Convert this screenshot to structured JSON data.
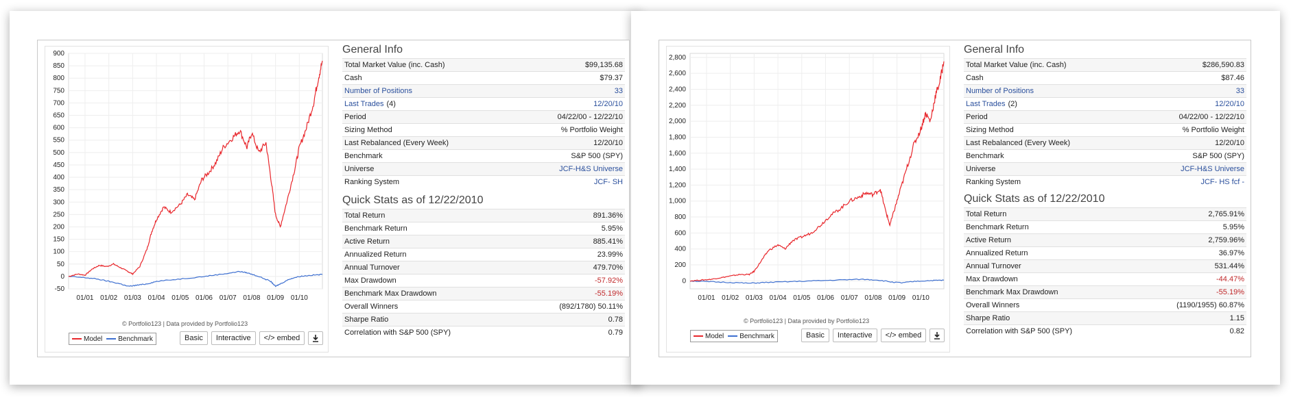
{
  "colors": {
    "model": "#e8262b",
    "benchmark": "#3d6fd0",
    "link": "#2a4f9c",
    "negative": "#c0282a"
  },
  "charts": [
    {
      "chart_data": {
        "type": "line",
        "ylim": [
          -50,
          900
        ],
        "yticks": [
          "900",
          "850",
          "800",
          "750",
          "700",
          "650",
          "600",
          "550",
          "500",
          "450",
          "400",
          "350",
          "300",
          "250",
          "200",
          "150",
          "100",
          "50",
          "0",
          "-50"
        ],
        "xticks": [
          "01/01",
          "01/02",
          "01/03",
          "01/04",
          "01/05",
          "01/06",
          "01/07",
          "01/08",
          "01/09",
          "01/10"
        ],
        "x_range": [
          2000.31,
          2010.97
        ],
        "series": [
          {
            "name": "Model",
            "x": [
              2000.31,
              2000.7,
              2001.0,
              2001.3,
              2001.6,
              2001.9,
              2002.2,
              2002.5,
              2002.8,
              2003.0,
              2003.3,
              2003.6,
              2003.8,
              2004.0,
              2004.3,
              2004.6,
              2005.0,
              2005.3,
              2005.6,
              2005.9,
              2006.2,
              2006.5,
              2006.8,
              2007.2,
              2007.5,
              2007.8,
              2008.0,
              2008.3,
              2008.6,
              2008.8,
              2009.0,
              2009.2,
              2009.5,
              2009.8,
              2010.0,
              2010.3,
              2010.6,
              2010.8,
              2010.97
            ],
            "y": [
              0,
              10,
              5,
              30,
              45,
              40,
              50,
              35,
              20,
              10,
              40,
              110,
              180,
              230,
              280,
              260,
              290,
              330,
              310,
              390,
              420,
              460,
              520,
              560,
              590,
              520,
              580,
              500,
              540,
              400,
              250,
              200,
              310,
              430,
              520,
              600,
              700,
              800,
              870
            ]
          },
          {
            "name": "Benchmark",
            "x": [
              2000.31,
              2001.0,
              2001.5,
              2002.0,
              2002.5,
              2002.8,
              2003.2,
              2003.6,
              2004.0,
              2005.0,
              2006.0,
              2006.8,
              2007.5,
              2007.8,
              2008.3,
              2008.8,
              2009.0,
              2009.2,
              2009.6,
              2010.0,
              2010.5,
              2010.97
            ],
            "y": [
              0,
              -5,
              -10,
              -20,
              -30,
              -40,
              -35,
              -30,
              -20,
              -10,
              0,
              10,
              20,
              15,
              0,
              -20,
              -40,
              -30,
              -10,
              0,
              5,
              8
            ]
          }
        ]
      },
      "credit": "© Portfolio123 | Data provided by Portfolio123",
      "legend": {
        "model": "Model",
        "benchmark": "Benchmark"
      },
      "buttons": {
        "basic": "Basic",
        "interactive": "Interactive",
        "embed": "</> embed"
      },
      "general_title": "General Info",
      "general": [
        {
          "label": "Total Market Value (inc. Cash)",
          "value": "$99,135.68"
        },
        {
          "label": "Cash",
          "value": "$79.37"
        },
        {
          "label": "Number of Positions",
          "value": "33",
          "link": true
        },
        {
          "label": "Last Trades",
          "extra": "(4)",
          "value": "12/20/10",
          "link": true
        },
        {
          "label": "Period",
          "value": "04/22/00 - 12/22/10"
        },
        {
          "label": "Sizing Method",
          "value": "% Portfolio Weight"
        },
        {
          "label": "Last Rebalanced (Every Week)",
          "value": "12/20/10"
        },
        {
          "label": "Benchmark",
          "value": "S&P 500 (SPY)"
        },
        {
          "label": "Universe",
          "value": "JCF-H&S Universe",
          "vlink": true
        },
        {
          "label": "Ranking System",
          "value": "JCF- SH",
          "vlink": true
        }
      ],
      "quick_title": "Quick Stats as of 12/22/2010",
      "quick": [
        {
          "label": "Total Return",
          "value": "891.36%"
        },
        {
          "label": "Benchmark Return",
          "value": "5.95%"
        },
        {
          "label": "Active Return",
          "value": "885.41%"
        },
        {
          "label": "Annualized Return",
          "value": "23.99%"
        },
        {
          "label": "Annual Turnover",
          "value": "479.70%"
        },
        {
          "label": "Max Drawdown",
          "value": "-57.92%",
          "neg": true
        },
        {
          "label": "Benchmark Max Drawdown",
          "value": "-55.19%",
          "neg": true
        },
        {
          "label": "Overall Winners",
          "value": "(892/1780) 50.11%"
        },
        {
          "label": "Sharpe Ratio",
          "value": "0.78"
        },
        {
          "label": "Correlation with S&P 500 (SPY)",
          "value": "0.79"
        }
      ]
    },
    {
      "chart_data": {
        "type": "line",
        "ylim": [
          -100,
          2850
        ],
        "yticks": [
          "2,800",
          "2,600",
          "2,400",
          "2,200",
          "2,000",
          "1,800",
          "1,600",
          "1,400",
          "1,200",
          "1,000",
          "800",
          "600",
          "400",
          "200",
          "0"
        ],
        "xticks": [
          "01/01",
          "01/02",
          "01/03",
          "01/04",
          "01/05",
          "01/06",
          "01/07",
          "01/08",
          "01/09",
          "01/10"
        ],
        "x_range": [
          2000.31,
          2010.97
        ],
        "series": [
          {
            "name": "Model",
            "x": [
              2000.31,
              2000.8,
              2001.2,
              2001.6,
              2002.0,
              2002.4,
              2002.8,
              2003.0,
              2003.3,
              2003.6,
              2004.0,
              2004.3,
              2004.6,
              2005.0,
              2005.4,
              2005.8,
              2006.2,
              2006.6,
              2007.0,
              2007.4,
              2007.7,
              2008.0,
              2008.3,
              2008.5,
              2008.7,
              2008.9,
              2009.1,
              2009.4,
              2009.7,
              2010.0,
              2010.2,
              2010.4,
              2010.6,
              2010.8,
              2010.97
            ],
            "y": [
              0,
              10,
              20,
              40,
              60,
              80,
              80,
              120,
              250,
              380,
              450,
              400,
              500,
              550,
              600,
              700,
              820,
              900,
              1000,
              1050,
              1100,
              1080,
              1150,
              900,
              700,
              900,
              1100,
              1400,
              1700,
              1900,
              2100,
              2000,
              2300,
              2500,
              2750
            ]
          },
          {
            "name": "Benchmark",
            "x": [
              2000.31,
              2001.0,
              2002.0,
              2002.8,
              2003.5,
              2004.5,
              2005.5,
              2006.5,
              2007.5,
              2008.2,
              2008.8,
              2009.2,
              2009.8,
              2010.5,
              2010.97
            ],
            "y": [
              0,
              -10,
              -20,
              -30,
              -20,
              -10,
              0,
              10,
              20,
              10,
              -15,
              -25,
              -5,
              5,
              8
            ]
          }
        ]
      },
      "credit": "© Portfolio123 | Data provided by Portfolio123",
      "legend": {
        "model": "Model",
        "benchmark": "Benchmark"
      },
      "buttons": {
        "basic": "Basic",
        "interactive": "Interactive",
        "embed": "</> embed"
      },
      "general_title": "General Info",
      "general": [
        {
          "label": "Total Market Value (inc. Cash)",
          "value": "$286,590.83"
        },
        {
          "label": "Cash",
          "value": "$87.46"
        },
        {
          "label": "Number of Positions",
          "value": "33",
          "link": true
        },
        {
          "label": "Last Trades",
          "extra": "(2)",
          "value": "12/20/10",
          "link": true
        },
        {
          "label": "Period",
          "value": "04/22/00 - 12/22/10"
        },
        {
          "label": "Sizing Method",
          "value": "% Portfolio Weight"
        },
        {
          "label": "Last Rebalanced (Every Week)",
          "value": "12/20/10"
        },
        {
          "label": "Benchmark",
          "value": "S&P 500 (SPY)"
        },
        {
          "label": "Universe",
          "value": "JCF-H&S Universe",
          "vlink": true
        },
        {
          "label": "Ranking System",
          "value": "JCF- HS fcf -",
          "vlink": true
        }
      ],
      "quick_title": "Quick Stats as of 12/22/2010",
      "quick": [
        {
          "label": "Total Return",
          "value": "2,765.91%"
        },
        {
          "label": "Benchmark Return",
          "value": "5.95%"
        },
        {
          "label": "Active Return",
          "value": "2,759.96%"
        },
        {
          "label": "Annualized Return",
          "value": "36.97%"
        },
        {
          "label": "Annual Turnover",
          "value": "531.44%"
        },
        {
          "label": "Max Drawdown",
          "value": "-44.47%",
          "neg": true
        },
        {
          "label": "Benchmark Max Drawdown",
          "value": "-55.19%",
          "neg": true
        },
        {
          "label": "Overall Winners",
          "value": "(1190/1955) 60.87%"
        },
        {
          "label": "Sharpe Ratio",
          "value": "1.15"
        },
        {
          "label": "Correlation with S&P 500 (SPY)",
          "value": "0.82"
        }
      ]
    }
  ]
}
